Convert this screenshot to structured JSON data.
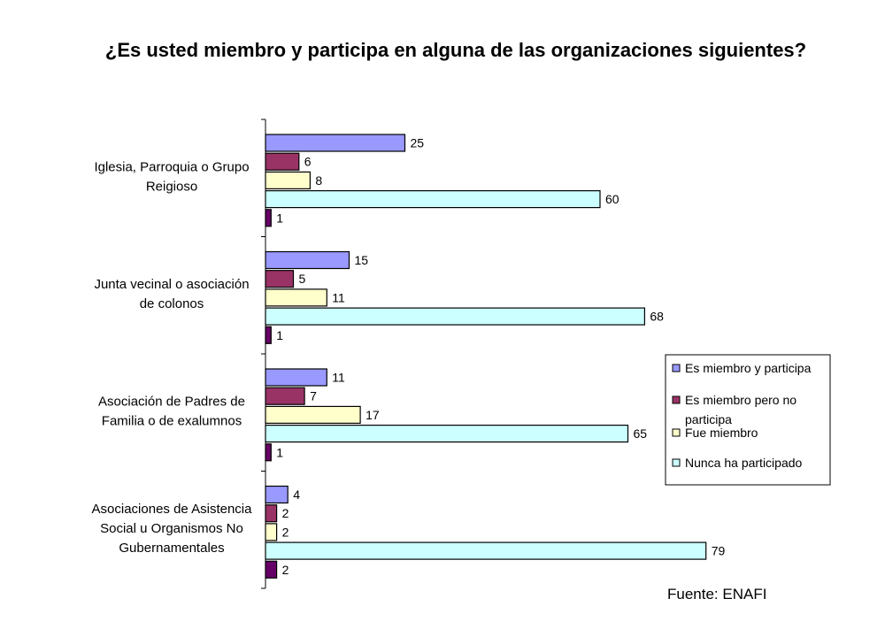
{
  "chart_data": {
    "type": "bar",
    "orientation": "horizontal",
    "title": "¿Es usted miembro y participa en alguna de las organizaciones siguientes?",
    "categories": [
      [
        "Iglesia, Parroquia o Grupo",
        "Reigioso"
      ],
      [
        "Junta vecinal o asociación",
        "de colonos"
      ],
      [
        "Asociación de Padres de",
        "Familia o de exalumnos"
      ],
      [
        "Asociaciones de Asistencia",
        "Social u Organismos No",
        "Gubernamentales"
      ]
    ],
    "series": [
      {
        "name": "Es miembro y participa",
        "color": "#9999ff",
        "values": [
          25,
          15,
          11,
          4
        ]
      },
      {
        "name": "Es miembro pero no participa",
        "color": "#993366",
        "values": [
          6,
          5,
          7,
          2
        ]
      },
      {
        "name": "Fue miembro",
        "color": "#ffffcc",
        "values": [
          8,
          11,
          17,
          2
        ]
      },
      {
        "name": "Nunca ha participado",
        "color": "#ccffff",
        "values": [
          60,
          68,
          65,
          79
        ]
      },
      {
        "name": "",
        "color": "#660066",
        "values": [
          1,
          1,
          1,
          2
        ]
      }
    ],
    "legend_lines": [
      [
        "Es miembro y participa"
      ],
      [
        "Es miembro pero no",
        "participa"
      ],
      [
        "Fue miembro"
      ],
      [
        "Nunca ha participado"
      ]
    ],
    "xlim": [
      0,
      100
    ],
    "grid": false,
    "legend_position": "right"
  },
  "source_note": "Fuente: ENAFI"
}
